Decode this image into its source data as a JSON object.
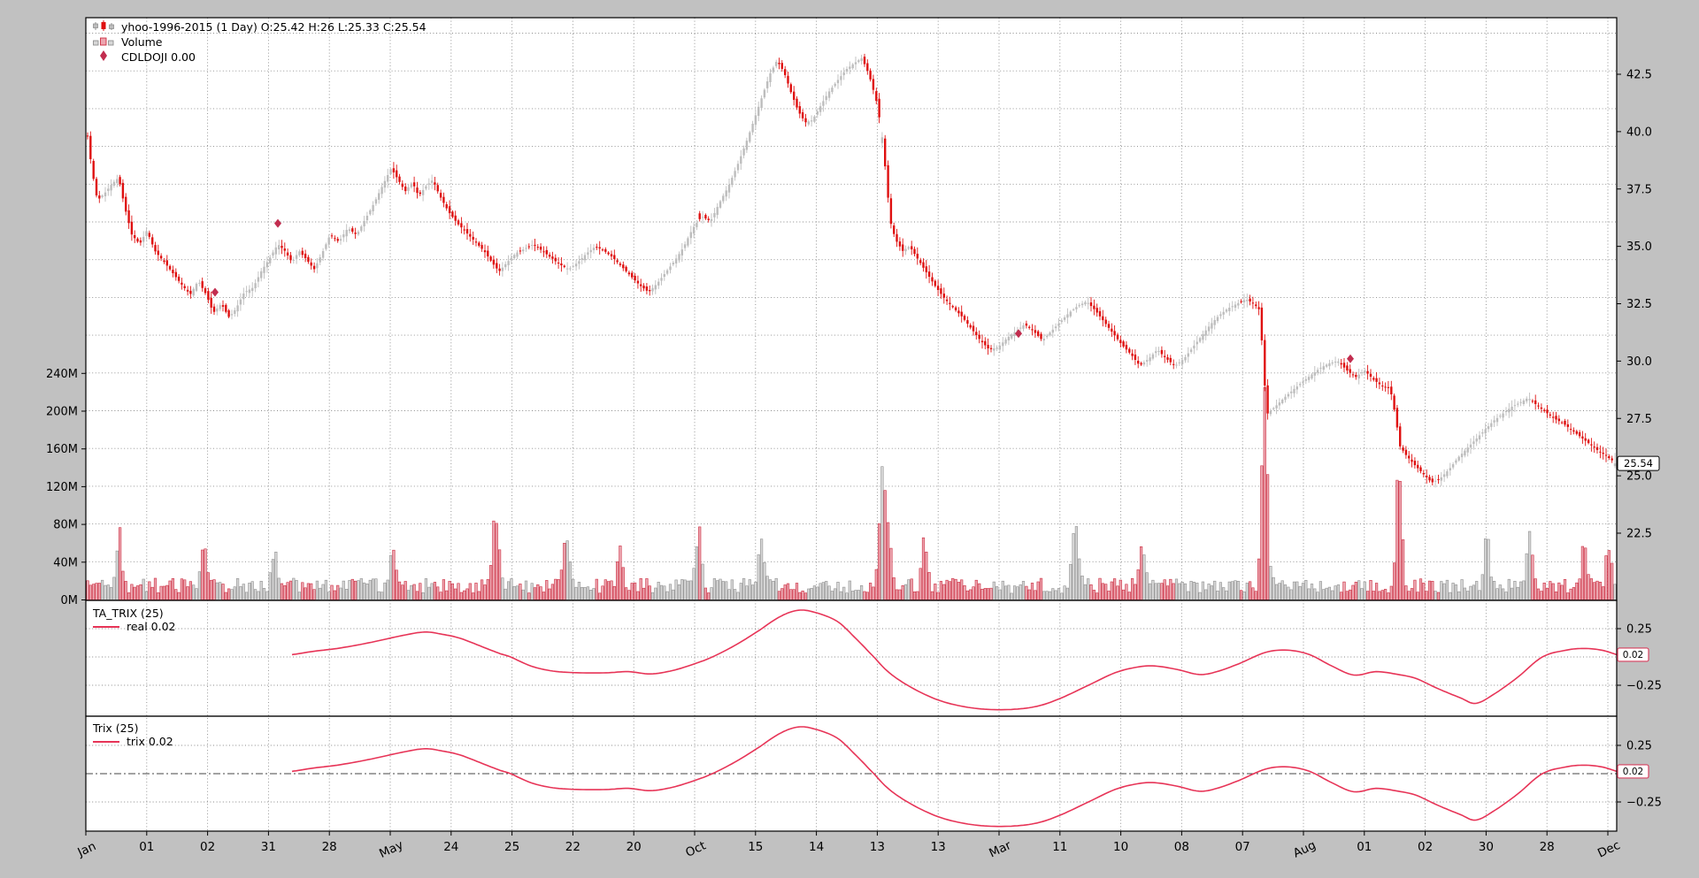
{
  "legend": {
    "series": [
      {
        "label": "yhoo-1996-2015 (1 Day) O:25.42 H:26 L:25.33 C:25.54",
        "icon": "candlestick-icon"
      },
      {
        "label": "Volume",
        "icon": "volume-bars-icon"
      },
      {
        "label": "CDLDOJI 0.00",
        "icon": "doji-diamond-icon"
      }
    ]
  },
  "colors": {
    "figure_bg": "#c1c1c1",
    "plot_bg": "#ffffff",
    "candle_up": "#bdbdbd",
    "candle_down": "#df1010",
    "volume_up_fill": "#d7d7d7",
    "volume_up_edge": "#8f8f8f",
    "volume_down_fill": "#eca6b0",
    "volume_down_edge": "#cc2c40",
    "trix_line": "#e73457",
    "doji_diamond": "#c22d4f",
    "grid": "#8a8a8a",
    "frame": "#000000",
    "tag_red_border": "#d63f5e",
    "text": "#000000"
  },
  "chart_data": {
    "type": "candlestick",
    "title": "yhoo-1996-2015 (1 Day) O:25.42 H:26 L:25.33 C:25.54",
    "seed": 11,
    "x_tick_labels": [
      {
        "label": "Jan",
        "month": true
      },
      {
        "label": "01"
      },
      {
        "label": "02"
      },
      {
        "label": "31"
      },
      {
        "label": "28"
      },
      {
        "label": "May",
        "month": true
      },
      {
        "label": "24"
      },
      {
        "label": "25"
      },
      {
        "label": "22"
      },
      {
        "label": "20"
      },
      {
        "label": "Oct",
        "month": true
      },
      {
        "label": "15"
      },
      {
        "label": "14"
      },
      {
        "label": "13"
      },
      {
        "label": "13"
      },
      {
        "label": "Mar",
        "month": true
      },
      {
        "label": "11"
      },
      {
        "label": "10"
      },
      {
        "label": "08"
      },
      {
        "label": "07"
      },
      {
        "label": "Aug",
        "month": true
      },
      {
        "label": "01"
      },
      {
        "label": "02"
      },
      {
        "label": "30"
      },
      {
        "label": "28"
      },
      {
        "label": "Dec",
        "month": true
      }
    ],
    "price_axis": {
      "tick_values": [
        42.5,
        40.0,
        37.5,
        35.0,
        32.5,
        30.0,
        27.5,
        25.0,
        22.5
      ],
      "tick_labels": [
        "42.5",
        "40.0",
        "37.5",
        "35.0",
        "32.5",
        "30.0",
        "27.5",
        "25.0",
        "22.5"
      ],
      "last_price_tag": "25.54",
      "ylim": [
        19.6,
        45.1
      ]
    },
    "volume_axis": {
      "tick_values": [
        240,
        200,
        160,
        120,
        80,
        40,
        0
      ],
      "tick_labels": [
        "240M",
        "200M",
        "160M",
        "120M",
        "80M",
        "40M",
        "0M"
      ]
    },
    "close_path": [
      [
        99,
        39.8
      ],
      [
        104,
        38.3
      ],
      [
        110,
        37.0
      ],
      [
        118,
        37.3
      ],
      [
        126,
        37.7
      ],
      [
        134,
        38.0
      ],
      [
        141,
        36.7
      ],
      [
        149,
        35.5
      ],
      [
        158,
        35.1
      ],
      [
        166,
        35.7
      ],
      [
        175,
        34.8
      ],
      [
        186,
        34.3
      ],
      [
        196,
        33.8
      ],
      [
        206,
        33.3
      ],
      [
        215,
        32.9
      ],
      [
        224,
        33.5
      ],
      [
        233,
        32.9
      ],
      [
        241,
        32.1
      ],
      [
        250,
        32.5
      ],
      [
        259,
        31.9
      ],
      [
        267,
        32.3
      ],
      [
        276,
        33.0
      ],
      [
        286,
        33.2
      ],
      [
        295,
        33.9
      ],
      [
        305,
        34.5
      ],
      [
        314,
        35.1
      ],
      [
        322,
        34.8
      ],
      [
        330,
        34.3
      ],
      [
        338,
        34.8
      ],
      [
        347,
        34.4
      ],
      [
        355,
        34.0
      ],
      [
        364,
        34.7
      ],
      [
        373,
        35.5
      ],
      [
        383,
        35.2
      ],
      [
        393,
        35.8
      ],
      [
        403,
        35.5
      ],
      [
        413,
        36.2
      ],
      [
        423,
        36.9
      ],
      [
        433,
        37.7
      ],
      [
        442,
        38.4
      ],
      [
        450,
        37.9
      ],
      [
        458,
        37.4
      ],
      [
        466,
        37.8
      ],
      [
        473,
        37.2
      ],
      [
        481,
        37.6
      ],
      [
        489,
        37.9
      ],
      [
        497,
        37.2
      ],
      [
        507,
        36.5
      ],
      [
        517,
        36.0
      ],
      [
        527,
        35.6
      ],
      [
        537,
        35.2
      ],
      [
        547,
        34.8
      ],
      [
        556,
        34.3
      ],
      [
        564,
        33.9
      ],
      [
        573,
        34.3
      ],
      [
        583,
        34.7
      ],
      [
        593,
        34.9
      ],
      [
        603,
        35.1
      ],
      [
        613,
        34.8
      ],
      [
        623,
        34.5
      ],
      [
        633,
        34.2
      ],
      [
        643,
        34.0
      ],
      [
        653,
        34.3
      ],
      [
        663,
        34.7
      ],
      [
        673,
        35.0
      ],
      [
        683,
        34.8
      ],
      [
        693,
        34.5
      ],
      [
        703,
        34.1
      ],
      [
        713,
        33.7
      ],
      [
        723,
        33.3
      ],
      [
        733,
        33.0
      ],
      [
        743,
        33.4
      ],
      [
        753,
        33.9
      ],
      [
        763,
        34.4
      ],
      [
        773,
        35.0
      ],
      [
        783,
        35.8
      ],
      [
        793,
        36.3
      ],
      [
        803,
        36.1
      ],
      [
        813,
        36.9
      ],
      [
        823,
        37.6
      ],
      [
        833,
        38.5
      ],
      [
        843,
        39.5
      ],
      [
        852,
        40.5
      ],
      [
        861,
        41.5
      ],
      [
        870,
        42.5
      ],
      [
        878,
        43.1
      ],
      [
        886,
        42.6
      ],
      [
        894,
        41.7
      ],
      [
        902,
        40.9
      ],
      [
        910,
        40.4
      ],
      [
        918,
        40.5
      ],
      [
        927,
        41.1
      ],
      [
        936,
        41.7
      ],
      [
        946,
        42.2
      ],
      [
        956,
        42.7
      ],
      [
        966,
        43.0
      ],
      [
        974,
        43.2
      ],
      [
        982,
        42.5
      ],
      [
        990,
        41.4
      ],
      [
        996,
        40.1
      ],
      [
        1001,
        38.2
      ],
      [
        1006,
        36.1
      ],
      [
        1012,
        35.3
      ],
      [
        1020,
        34.8
      ],
      [
        1028,
        35.0
      ],
      [
        1038,
        34.4
      ],
      [
        1048,
        33.8
      ],
      [
        1058,
        33.2
      ],
      [
        1068,
        32.7
      ],
      [
        1078,
        32.3
      ],
      [
        1088,
        31.9
      ],
      [
        1098,
        31.4
      ],
      [
        1108,
        30.9
      ],
      [
        1118,
        30.5
      ],
      [
        1128,
        30.6
      ],
      [
        1138,
        31.0
      ],
      [
        1148,
        31.3
      ],
      [
        1158,
        31.6
      ],
      [
        1168,
        31.3
      ],
      [
        1178,
        30.9
      ],
      [
        1188,
        31.3
      ],
      [
        1198,
        31.7
      ],
      [
        1208,
        32.1
      ],
      [
        1218,
        32.4
      ],
      [
        1228,
        32.6
      ],
      [
        1238,
        32.2
      ],
      [
        1248,
        31.7
      ],
      [
        1258,
        31.2
      ],
      [
        1268,
        30.7
      ],
      [
        1278,
        30.3
      ],
      [
        1288,
        29.8
      ],
      [
        1298,
        30.1
      ],
      [
        1308,
        30.5
      ],
      [
        1318,
        30.1
      ],
      [
        1328,
        29.8
      ],
      [
        1338,
        30.1
      ],
      [
        1348,
        30.6
      ],
      [
        1358,
        31.1
      ],
      [
        1368,
        31.6
      ],
      [
        1378,
        32.0
      ],
      [
        1388,
        32.3
      ],
      [
        1398,
        32.5
      ],
      [
        1408,
        32.7
      ],
      [
        1417,
        32.5
      ],
      [
        1424,
        32.2
      ],
      [
        1428,
        29.5
      ],
      [
        1432,
        27.7
      ],
      [
        1438,
        27.9
      ],
      [
        1446,
        28.2
      ],
      [
        1454,
        28.5
      ],
      [
        1463,
        28.8
      ],
      [
        1472,
        29.1
      ],
      [
        1482,
        29.4
      ],
      [
        1492,
        29.7
      ],
      [
        1502,
        29.9
      ],
      [
        1512,
        30.0
      ],
      [
        1522,
        29.6
      ],
      [
        1532,
        29.3
      ],
      [
        1542,
        29.6
      ],
      [
        1552,
        29.2
      ],
      [
        1562,
        28.9
      ],
      [
        1571,
        28.8
      ],
      [
        1577,
        27.6
      ],
      [
        1582,
        26.3
      ],
      [
        1589,
        25.9
      ],
      [
        1598,
        25.5
      ],
      [
        1608,
        25.1
      ],
      [
        1618,
        24.7
      ],
      [
        1628,
        24.9
      ],
      [
        1638,
        25.3
      ],
      [
        1648,
        25.8
      ],
      [
        1658,
        26.2
      ],
      [
        1668,
        26.6
      ],
      [
        1678,
        27.0
      ],
      [
        1688,
        27.4
      ],
      [
        1698,
        27.7
      ],
      [
        1708,
        28.0
      ],
      [
        1718,
        28.2
      ],
      [
        1727,
        28.4
      ],
      [
        1736,
        28.1
      ],
      [
        1746,
        27.8
      ],
      [
        1756,
        27.5
      ],
      [
        1766,
        27.3
      ],
      [
        1776,
        27.0
      ],
      [
        1786,
        26.7
      ],
      [
        1796,
        26.4
      ],
      [
        1806,
        26.1
      ],
      [
        1814,
        25.9
      ],
      [
        1821,
        25.7
      ],
      [
        1827,
        25.5
      ]
    ],
    "volume_base_range": [
      7,
      23
    ],
    "volume_spikes": [
      [
        135,
        52,
        -1
      ],
      [
        230,
        46,
        -1
      ],
      [
        310,
        36,
        0
      ],
      [
        443,
        38,
        0
      ],
      [
        560,
        84,
        -1
      ],
      [
        640,
        50,
        0
      ],
      [
        700,
        34,
        0
      ],
      [
        790,
        62,
        -1
      ],
      [
        860,
        40,
        0
      ],
      [
        997,
        118,
        1
      ],
      [
        1004,
        56,
        -1
      ],
      [
        1045,
        50,
        0
      ],
      [
        1215,
        76,
        1
      ],
      [
        1290,
        40,
        -1
      ],
      [
        1429,
        210,
        -1
      ],
      [
        1581,
        125,
        -1
      ],
      [
        1680,
        50,
        0
      ],
      [
        1728,
        56,
        0
      ],
      [
        1790,
        42,
        0
      ],
      [
        1818,
        36,
        -1
      ]
    ],
    "doji_markers": [
      [
        243,
        33.0
      ],
      [
        314,
        36.0
      ],
      [
        1151,
        31.2
      ],
      [
        1526,
        30.1
      ]
    ],
    "last_candle": {
      "open": 25.42,
      "high": 26.0,
      "low": 25.33,
      "close": 25.54
    },
    "trix_panels": [
      {
        "title": "TA_TRIX (25)",
        "legend_label": "real 0.02",
        "value_tag": "0.02",
        "tick_values": [
          0.25,
          0,
          -0.25
        ],
        "tick_labels": [
          "0.25",
          "0",
          "−0.25"
        ]
      },
      {
        "title": "Trix (25)",
        "legend_label": "trix 0.02",
        "value_tag": "0.02",
        "tick_values": [
          0.25,
          0,
          -0.25
        ],
        "tick_labels": [
          "0.25",
          "0",
          "−0.25"
        ]
      }
    ],
    "trix_values": [
      [
        330,
        0.02
      ],
      [
        355,
        0.05
      ],
      [
        385,
        0.08
      ],
      [
        420,
        0.13
      ],
      [
        455,
        0.19
      ],
      [
        480,
        0.22
      ],
      [
        500,
        0.2
      ],
      [
        520,
        0.165
      ],
      [
        545,
        0.09
      ],
      [
        565,
        0.03
      ],
      [
        577,
        0.0
      ],
      [
        600,
        -0.08
      ],
      [
        625,
        -0.125
      ],
      [
        655,
        -0.14
      ],
      [
        685,
        -0.14
      ],
      [
        710,
        -0.13
      ],
      [
        735,
        -0.15
      ],
      [
        760,
        -0.12
      ],
      [
        785,
        -0.06
      ],
      [
        805,
        0.0
      ],
      [
        830,
        0.1
      ],
      [
        855,
        0.22
      ],
      [
        880,
        0.35
      ],
      [
        900,
        0.41
      ],
      [
        918,
        0.4
      ],
      [
        945,
        0.32
      ],
      [
        965,
        0.18
      ],
      [
        985,
        0.02
      ],
      [
        1005,
        -0.14
      ],
      [
        1030,
        -0.27
      ],
      [
        1060,
        -0.38
      ],
      [
        1090,
        -0.44
      ],
      [
        1120,
        -0.465
      ],
      [
        1150,
        -0.46
      ],
      [
        1175,
        -0.43
      ],
      [
        1200,
        -0.36
      ],
      [
        1230,
        -0.25
      ],
      [
        1260,
        -0.14
      ],
      [
        1285,
        -0.09
      ],
      [
        1305,
        -0.08
      ],
      [
        1330,
        -0.11
      ],
      [
        1355,
        -0.155
      ],
      [
        1375,
        -0.13
      ],
      [
        1400,
        -0.06
      ],
      [
        1430,
        0.04
      ],
      [
        1455,
        0.06
      ],
      [
        1480,
        0.02
      ],
      [
        1505,
        -0.08
      ],
      [
        1530,
        -0.16
      ],
      [
        1555,
        -0.13
      ],
      [
        1580,
        -0.155
      ],
      [
        1600,
        -0.19
      ],
      [
        1625,
        -0.28
      ],
      [
        1650,
        -0.36
      ],
      [
        1668,
        -0.41
      ],
      [
        1690,
        -0.32
      ],
      [
        1715,
        -0.18
      ],
      [
        1743,
        0.0
      ],
      [
        1770,
        0.06
      ],
      [
        1790,
        0.075
      ],
      [
        1810,
        0.06
      ],
      [
        1827,
        0.02
      ]
    ]
  }
}
